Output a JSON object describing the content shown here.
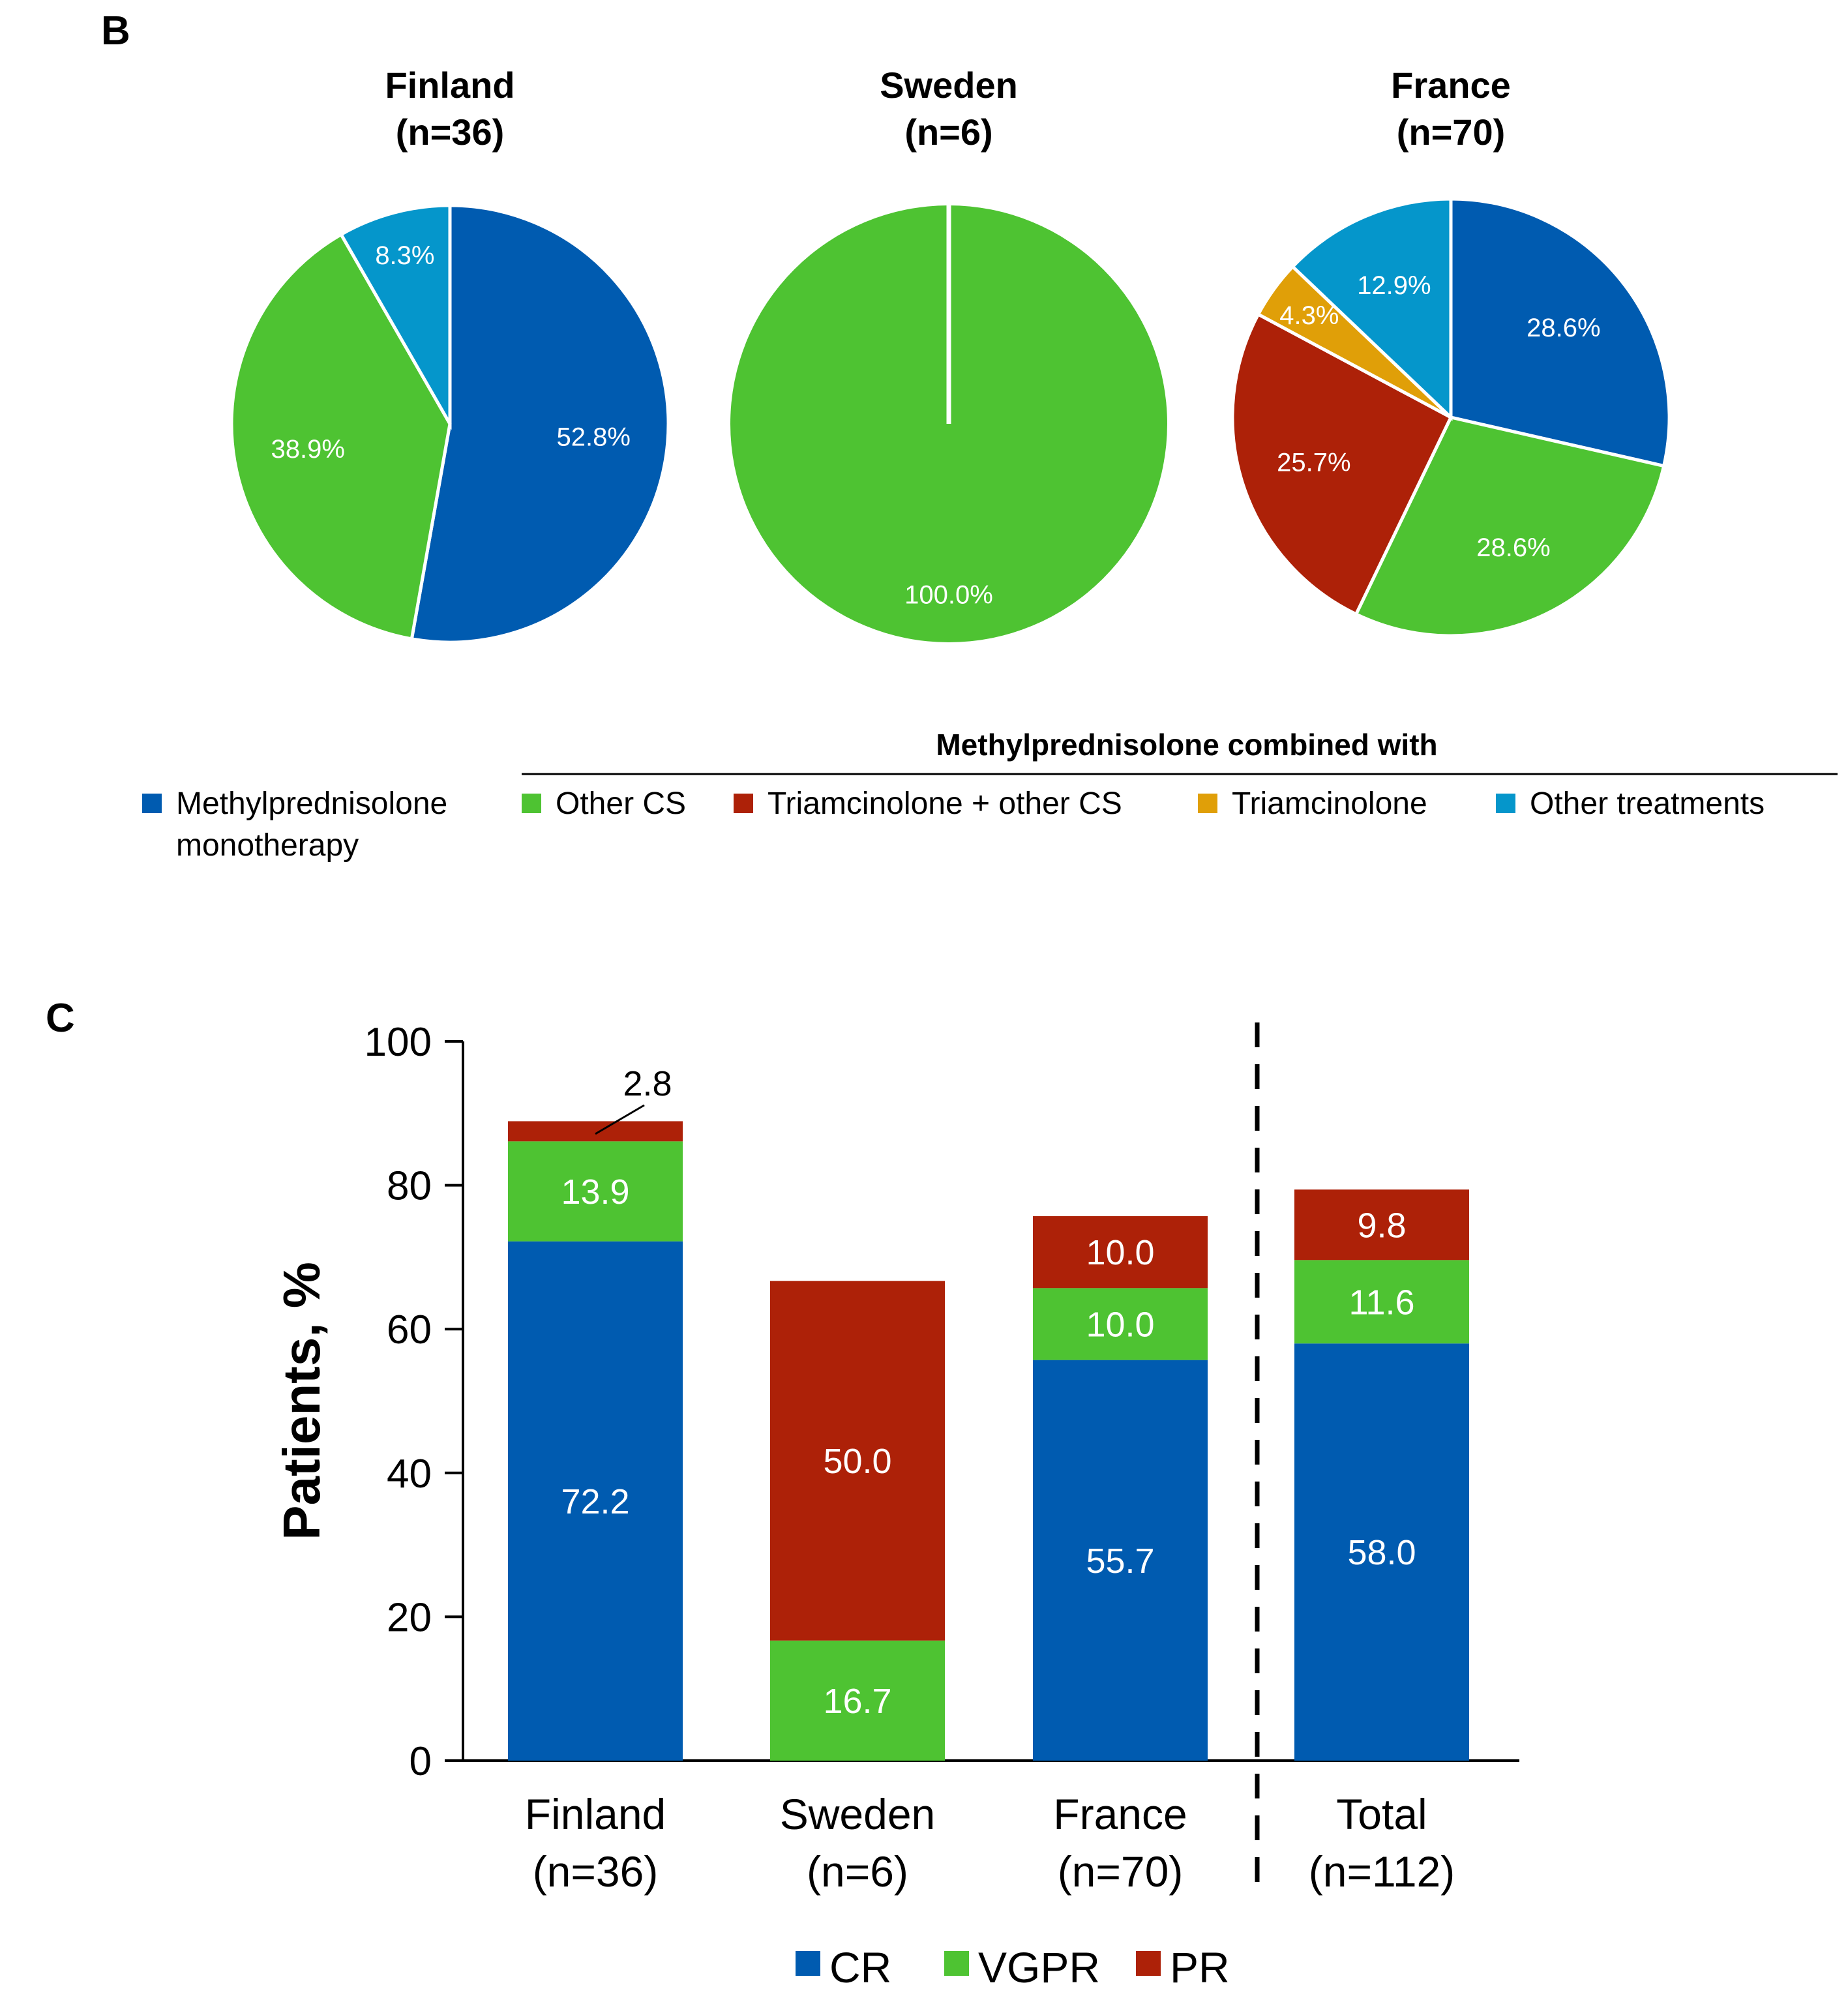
{
  "chart_data": [
    {
      "panel": "B",
      "type": "pie",
      "legend_header": "Methylprednisolone combined with",
      "legend": [
        {
          "key": "mono",
          "label_lines": [
            "Methylprednisolone",
            "monotherapy"
          ],
          "color": "#005bb0"
        },
        {
          "key": "othercs",
          "label_lines": [
            "Other CS"
          ],
          "color": "#4ec332"
        },
        {
          "key": "triother",
          "label_lines": [
            "Triamcinolone  + other CS"
          ],
          "color": "#ad2108"
        },
        {
          "key": "tri",
          "label_lines": [
            "Triamcinolone"
          ],
          "color": "#e09f08"
        },
        {
          "key": "othertx",
          "label_lines": [
            "Other treatments"
          ],
          "color": "#0596cb"
        }
      ],
      "pies": [
        {
          "title": "Finland",
          "subtitle": "(n=36)",
          "slices": [
            {
              "key": "mono",
              "value": 52.8,
              "label": "52.8%"
            },
            {
              "key": "othercs",
              "value": 38.9,
              "label": "38.9%"
            },
            {
              "key": "othertx",
              "value": 8.3,
              "label": "8.3%"
            }
          ]
        },
        {
          "title": "Sweden",
          "subtitle": "(n=6)",
          "slices": [
            {
              "key": "othercs",
              "value": 100.0,
              "label": "100.0%"
            }
          ]
        },
        {
          "title": "France",
          "subtitle": "(n=70)",
          "slices": [
            {
              "key": "mono",
              "value": 28.6,
              "label": "28.6%"
            },
            {
              "key": "othercs",
              "value": 28.6,
              "label": "28.6%"
            },
            {
              "key": "triother",
              "value": 25.7,
              "label": "25.7%"
            },
            {
              "key": "tri",
              "value": 4.3,
              "label": "4.3%"
            },
            {
              "key": "othertx",
              "value": 12.9,
              "label": "12.9%"
            }
          ]
        }
      ]
    },
    {
      "panel": "C",
      "type": "bar",
      "stacked": true,
      "ylabel": "Patients, %",
      "ylim": [
        0,
        100
      ],
      "yticks": [
        0,
        20,
        40,
        60,
        80,
        100
      ],
      "categories": [
        {
          "name": "Finland",
          "sub": "(n=36)"
        },
        {
          "name": "Sweden",
          "sub": "(n=6)"
        },
        {
          "name": "France",
          "sub": "(n=70)"
        },
        {
          "name": "Total",
          "sub": "(n=112)"
        }
      ],
      "series": [
        {
          "name": "CR",
          "color": "#005bb0",
          "values": [
            72.2,
            0,
            55.7,
            58.0
          ],
          "labels": [
            "72.2",
            "",
            "55.7",
            "58.0"
          ]
        },
        {
          "name": "VGPR",
          "color": "#4ec332",
          "values": [
            13.9,
            16.7,
            10.0,
            11.6
          ],
          "labels": [
            "13.9",
            "16.7",
            "10.0",
            "11.6"
          ]
        },
        {
          "name": "PR",
          "color": "#ad2108",
          "values": [
            2.8,
            50.0,
            10.0,
            9.8
          ],
          "labels": [
            "2.8",
            "50.0",
            "10.0",
            "9.8"
          ]
        }
      ],
      "separator": "dashed line before Total"
    }
  ]
}
